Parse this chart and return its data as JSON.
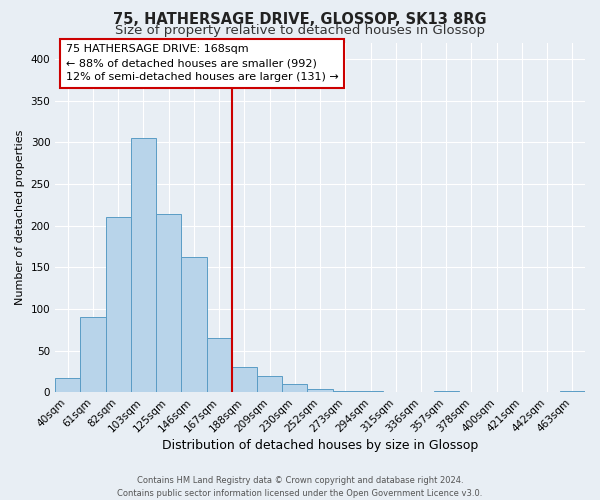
{
  "title": "75, HATHERSAGE DRIVE, GLOSSOP, SK13 8RG",
  "subtitle": "Size of property relative to detached houses in Glossop",
  "xlabel": "Distribution of detached houses by size in Glossop",
  "ylabel": "Number of detached properties",
  "bar_color": "#b8d4ea",
  "bar_edge_color": "#5a9cc5",
  "background_color": "#e8eef4",
  "grid_color": "#ffffff",
  "bin_labels": [
    "40sqm",
    "61sqm",
    "82sqm",
    "103sqm",
    "125sqm",
    "146sqm",
    "167sqm",
    "188sqm",
    "209sqm",
    "230sqm",
    "252sqm",
    "273sqm",
    "294sqm",
    "315sqm",
    "336sqm",
    "357sqm",
    "378sqm",
    "400sqm",
    "421sqm",
    "442sqm",
    "463sqm"
  ],
  "bar_heights": [
    17,
    90,
    211,
    305,
    214,
    162,
    65,
    30,
    20,
    10,
    4,
    2,
    1,
    0,
    0,
    2,
    0,
    0,
    0,
    0,
    2
  ],
  "vline_color": "#cc0000",
  "annotation_title": "75 HATHERSAGE DRIVE: 168sqm",
  "annotation_line1": "← 88% of detached houses are smaller (992)",
  "annotation_line2": "12% of semi-detached houses are larger (131) →",
  "ylim": [
    0,
    420
  ],
  "yticks": [
    0,
    50,
    100,
    150,
    200,
    250,
    300,
    350,
    400
  ],
  "footer_line1": "Contains HM Land Registry data © Crown copyright and database right 2024.",
  "footer_line2": "Contains public sector information licensed under the Open Government Licence v3.0.",
  "title_fontsize": 10.5,
  "subtitle_fontsize": 9.5,
  "xlabel_fontsize": 9,
  "ylabel_fontsize": 8,
  "tick_fontsize": 7.5,
  "annotation_fontsize": 8,
  "footer_fontsize": 6
}
